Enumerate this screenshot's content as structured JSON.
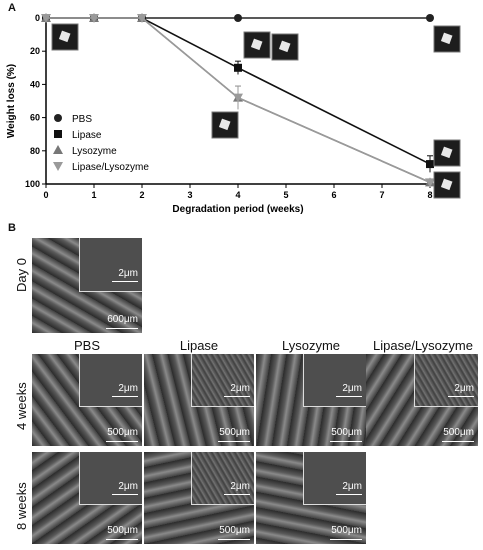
{
  "panels": {
    "a": "A",
    "b": "B"
  },
  "chart_data": {
    "type": "line",
    "xlabel": "Degradation period (weeks)",
    "ylabel": "Weight loss (%)",
    "xlim": [
      0,
      8
    ],
    "ylim": [
      0,
      100
    ],
    "y_inverted": true,
    "x_ticks": [
      0,
      1,
      2,
      3,
      4,
      5,
      6,
      7,
      8
    ],
    "y_ticks": [
      0,
      20,
      40,
      60,
      80,
      100
    ],
    "legend_position": "left",
    "grid": false,
    "series": [
      {
        "name": "PBS",
        "marker": "circle",
        "color": "#222222",
        "x": [
          0,
          1,
          2,
          4,
          8
        ],
        "y": [
          0,
          0,
          0,
          0,
          0
        ],
        "err": [
          0,
          0,
          0,
          0,
          0
        ]
      },
      {
        "name": "Lipase",
        "marker": "square",
        "color": "#111111",
        "x": [
          0,
          1,
          2,
          4,
          8
        ],
        "y": [
          0,
          0,
          0,
          30,
          88
        ],
        "err": [
          0,
          0,
          0,
          4,
          5
        ]
      },
      {
        "name": "Lysozyme",
        "marker": "triangle-up",
        "color": "#777777",
        "x": [
          0,
          1,
          2,
          4,
          8
        ],
        "y": [
          0,
          0,
          0,
          48,
          99
        ],
        "err": [
          0,
          0,
          0,
          7,
          2
        ]
      },
      {
        "name": "Lipase/Lysozyme",
        "marker": "triangle-down",
        "color": "#9a9a9a",
        "x": [
          0,
          1,
          2,
          4,
          8
        ],
        "y": [
          0,
          0,
          0,
          48,
          99
        ],
        "err": [
          0,
          0,
          0,
          7,
          2
        ]
      }
    ]
  },
  "micrographs": {
    "row_labels": {
      "day0": "Day 0",
      "w4": "4 weeks",
      "w8": "8 weeks"
    },
    "col_labels": [
      "PBS",
      "Lipase",
      "Lysozyme",
      "Lipase/Lysozyme"
    ],
    "scale_large": "500μm",
    "scale_large_day0": "600μm",
    "scale_small": "2μm"
  }
}
